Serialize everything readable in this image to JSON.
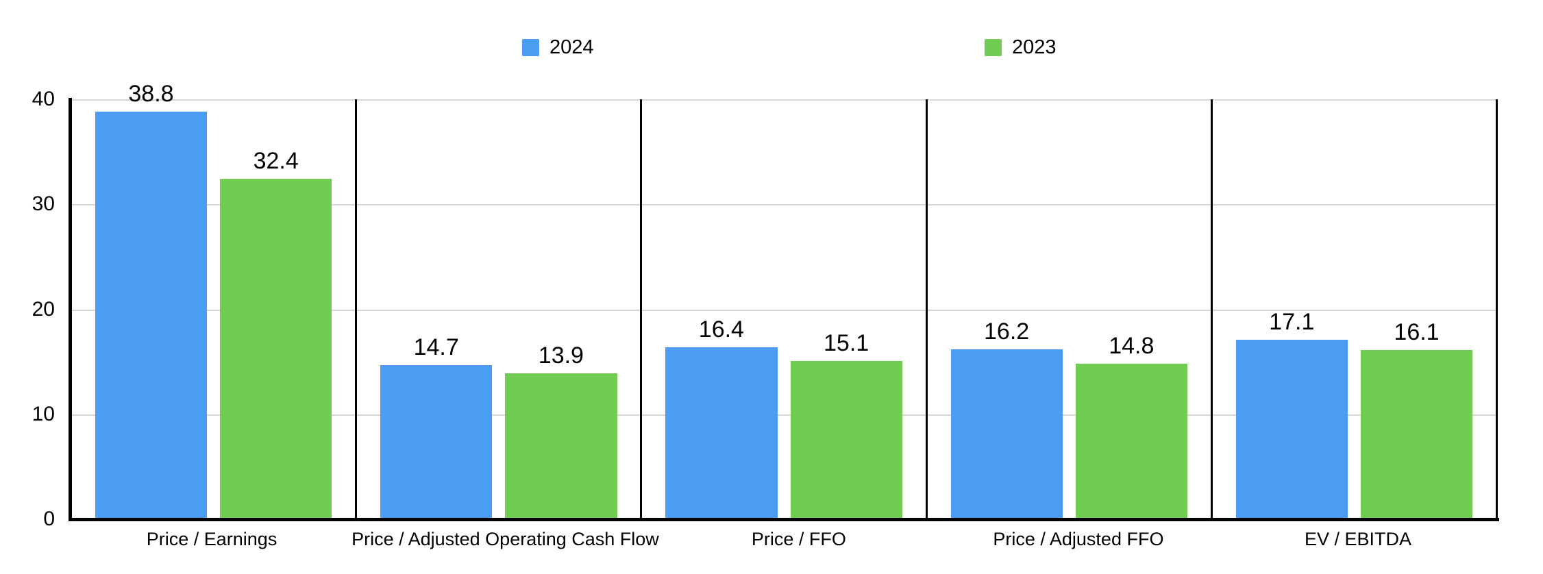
{
  "chart_data": {
    "type": "bar",
    "title": "",
    "categories": [
      "Price / Earnings",
      "Price / Adjusted Operating Cash Flow",
      "Price / FFO",
      "Price / Adjusted FFO",
      "EV / EBITDA"
    ],
    "series": [
      {
        "name": "2024",
        "color": "#4A9DF3",
        "values": [
          38.8,
          14.7,
          16.4,
          16.2,
          17.1
        ]
      },
      {
        "name": "2023",
        "color": "#72CB52",
        "values": [
          32.4,
          13.9,
          15.1,
          14.8,
          16.1
        ]
      }
    ],
    "ylim": [
      0,
      40
    ],
    "yticks": [
      "40",
      "30",
      "20",
      "10",
      "0"
    ],
    "grid": "horizontal",
    "legend_position": "top",
    "panel_dividers": true
  },
  "legend": {
    "items": [
      {
        "label": "2024"
      },
      {
        "label": "2023"
      }
    ]
  },
  "colors": {
    "series_2024": "#4A9DF3",
    "series_2023": "#72CB52",
    "gridline": "#D8D8D8",
    "axis": "#000000",
    "background": "#FFFFFF"
  }
}
